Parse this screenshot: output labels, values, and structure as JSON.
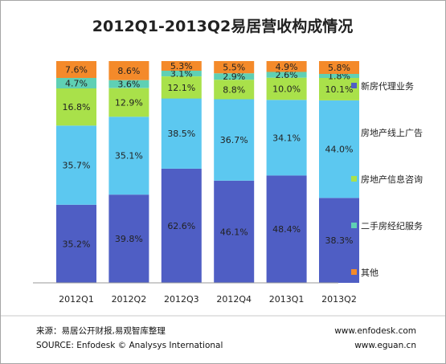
{
  "chart_data": {
    "type": "bar",
    "stacked": true,
    "percent_stacked": true,
    "title": "2012Q1-2013Q2易居营收构成情况",
    "categories": [
      "2012Q1",
      "2012Q2",
      "2012Q3",
      "2012Q4",
      "2013Q1",
      "2013Q2"
    ],
    "series": [
      {
        "name": "新房代理业务",
        "color": "#4f5ec4",
        "values": [
          35.2,
          39.8,
          62.6,
          46.1,
          48.4,
          38.3
        ]
      },
      {
        "name": "房地产线上广告",
        "color": "#5cc8f0",
        "values": [
          35.7,
          35.1,
          38.5,
          36.7,
          34.1,
          44.0
        ]
      },
      {
        "name": "房地产信息咨询",
        "color": "#a9e14a",
        "values": [
          16.8,
          12.9,
          12.1,
          8.8,
          10.0,
          10.1
        ]
      },
      {
        "name": "二手房经纪服务",
        "color": "#5fd0b4",
        "values": [
          4.7,
          3.6,
          3.1,
          2.9,
          2.6,
          1.8
        ]
      },
      {
        "name": "其他",
        "color": "#f48a2a",
        "values": [
          7.6,
          8.6,
          5.3,
          5.5,
          4.9,
          5.8
        ]
      }
    ],
    "legend_position": "right",
    "grid": false
  },
  "source": {
    "cn": "来源：易居公开财报,易观智库整理",
    "en": "SOURCE: Enfodesk © Analysys International",
    "site1": "www.enfodesk.com",
    "site2": "www.eguan.cn"
  }
}
